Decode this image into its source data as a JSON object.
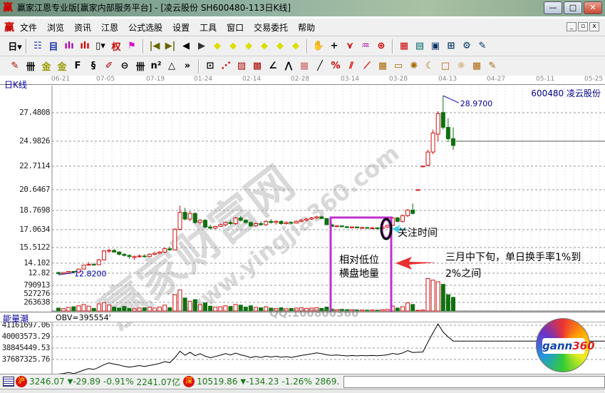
{
  "window": {
    "title": "赢家江恩专业版[赢家内部服务平台] - [凌云股份  SH600480-113日K线]",
    "logo": "赢",
    "buttons": [
      "—",
      "□",
      "✕"
    ]
  },
  "menu": {
    "logo": "赢",
    "items": [
      "文件",
      "浏览",
      "资讯",
      "江恩",
      "公式选股",
      "设置",
      "工具",
      "窗口",
      "交易委托",
      "帮助"
    ],
    "mdi_buttons": [
      "_",
      "▫",
      "x"
    ]
  },
  "toolbar1": [
    {
      "icon": "period-day-icon",
      "glyph": "日▾",
      "color": "#000"
    },
    {
      "sep": true
    },
    {
      "icon": "stock-list-icon",
      "glyph": "☷",
      "color": "#2233aa"
    },
    {
      "icon": "self-select-icon",
      "glyph": "目",
      "color": "#2233aa"
    },
    {
      "icon": "indicator-3-icon",
      "glyph": "ılı",
      "color": "#a0a"
    },
    {
      "icon": "indicator-9-icon",
      "glyph": "ılı",
      "color": "#c00"
    },
    {
      "icon": "candle-type-icon",
      "glyph": "▯▾",
      "color": "#000"
    },
    {
      "icon": "restore-rights-icon",
      "glyph": "权",
      "color": "#c00"
    },
    {
      "icon": "flag-icon",
      "glyph": "⚑",
      "color": "#d0c"
    },
    {
      "sep": true
    },
    {
      "icon": "first-icon",
      "glyph": "|◀",
      "color": "#660"
    },
    {
      "icon": "last-icon",
      "glyph": "▶|",
      "color": "#660"
    },
    {
      "icon": "prev-icon",
      "glyph": "◀",
      "color": "#000"
    },
    {
      "icon": "next-icon",
      "glyph": "▶",
      "color": "#333"
    },
    {
      "icon": "zoom-left-icon",
      "glyph": "◆",
      "color": "#dd0"
    },
    {
      "icon": "zoom-right-icon",
      "glyph": "◆",
      "color": "#dd0"
    },
    {
      "icon": "zoom-h-icon",
      "glyph": "◆",
      "color": "#dd0"
    },
    {
      "icon": "compress-h-icon",
      "glyph": "◆",
      "color": "#dd0"
    },
    {
      "icon": "zoom-all-icon",
      "glyph": "◆",
      "color": "#dd0"
    },
    {
      "icon": "zoom-v-icon",
      "glyph": "◆",
      "color": "#dd0"
    },
    {
      "sep": true
    },
    {
      "icon": "hand-icon",
      "glyph": "✋",
      "color": "#333"
    },
    {
      "icon": "crosshair-icon",
      "glyph": "+",
      "color": "#000"
    },
    {
      "icon": "trend-icon",
      "glyph": "⋎",
      "color": "#c00"
    },
    {
      "icon": "pattern-icon",
      "glyph": "♒",
      "color": "#a0a"
    },
    {
      "icon": "overlay-icon",
      "glyph": "⊕",
      "color": "#c00"
    },
    {
      "sep": true
    },
    {
      "icon": "calendar-icon",
      "glyph": "▦",
      "color": "#c00"
    },
    {
      "icon": "calculator-icon",
      "glyph": "▤",
      "color": "#066"
    },
    {
      "icon": "display-icon",
      "glyph": "▣",
      "color": "#036"
    },
    {
      "icon": "network-icon",
      "glyph": "⊞",
      "color": "#036"
    },
    {
      "icon": "settings-icon",
      "glyph": "⚙",
      "color": "#036"
    },
    {
      "icon": "trade-icon",
      "glyph": "✎",
      "color": "#036"
    }
  ],
  "toolbar2": [
    {
      "icon": "pen-icon",
      "glyph": "✎",
      "color": "#a00"
    },
    {
      "icon": "cycle-lines-icon",
      "glyph": "卌",
      "color": "#000"
    },
    {
      "icon": "gold-ratio-icon",
      "glyph": "金",
      "color": "#990"
    },
    {
      "icon": "gold-ratio2-icon",
      "glyph": "金",
      "color": "#990"
    },
    {
      "icon": "fibonacci-icon",
      "glyph": "F",
      "color": "#000"
    },
    {
      "icon": "spiral-icon",
      "glyph": "§",
      "color": "#000"
    },
    {
      "icon": "gann-pen-icon",
      "glyph": "✐",
      "color": "#a00"
    },
    {
      "icon": "circle-icon",
      "glyph": "⊖",
      "color": "#000"
    },
    {
      "icon": "time-lines-icon",
      "glyph": "卌",
      "color": "#000"
    },
    {
      "icon": "square-n-icon",
      "glyph": "n²",
      "color": "#000"
    },
    {
      "icon": "triangle-icon",
      "glyph": "△",
      "color": "#000"
    },
    {
      "icon": "more-icon",
      "glyph": "»",
      "color": "#000"
    },
    {
      "sep": true
    },
    {
      "icon": "box-icon",
      "glyph": "⊡",
      "color": "#000"
    },
    {
      "icon": "fan-icon",
      "glyph": "⋰",
      "color": "#c00"
    },
    {
      "icon": "gann-box-icon",
      "glyph": "▨",
      "color": "#a00"
    },
    {
      "icon": "gann-grid-icon",
      "glyph": "▩",
      "color": "#a00"
    },
    {
      "icon": "angle-icon",
      "glyph": "∠",
      "color": "#000"
    },
    {
      "icon": "wave-icon",
      "glyph": "⋀",
      "color": "#000"
    },
    {
      "icon": "grid-icon",
      "glyph": "▦",
      "color": "#c66"
    },
    {
      "icon": "line-icon",
      "glyph": "╱",
      "color": "#000"
    },
    {
      "icon": "percent-icon",
      "glyph": "%",
      "color": "#c00"
    },
    {
      "icon": "channel-icon",
      "glyph": "⫽",
      "color": "#c00"
    },
    {
      "icon": "fan2-icon",
      "glyph": "⟋",
      "color": "#c00"
    },
    {
      "icon": "gann-square-icon",
      "glyph": "▦",
      "color": "#a60"
    },
    {
      "icon": "level-icon",
      "glyph": "▭",
      "color": "#a60"
    },
    {
      "icon": "astro-icon",
      "glyph": "✺",
      "color": "#a60"
    },
    {
      "icon": "moon-icon",
      "glyph": "☾",
      "color": "#a60"
    },
    {
      "icon": "square-icon",
      "glyph": "□",
      "color": "#a60"
    },
    {
      "icon": "sun-icon",
      "glyph": "☼",
      "color": "#a60"
    },
    {
      "icon": "table-icon",
      "glyph": "▦",
      "color": "#a60"
    },
    {
      "icon": "edit-icon",
      "glyph": "✎",
      "color": "#a60"
    }
  ],
  "date_axis": [
    "06-21",
    "07-05",
    "07-19",
    "01-24",
    "02-14",
    "02-28",
    "03-14",
    "03-28",
    "04-13",
    "04-27",
    "05-11",
    "05-25"
  ],
  "chart": {
    "name": "日K线",
    "stock": "600480  凌云股份",
    "high_label": "28.9700",
    "low_label": "12.8200"
  },
  "obv": {
    "name": "能量潮",
    "label": "OBV=395554'"
  },
  "annotations": {
    "focus": "关注时间",
    "box_line1": "相对低位",
    "box_line2": "横盘地量",
    "note_line1": "三月中下旬，单日换手率1%到",
    "note_line2": "2%之间"
  },
  "watermark": {
    "cn": "赢家财富网",
    "url": "www.yingjia360.com",
    "qq": "QQ:100800360",
    "logo": "gann360"
  },
  "status": {
    "sh_icon": "沪",
    "sh_index": "3246.07",
    "sh_change": "-29.89",
    "sh_pct": "-0.91%",
    "sh_amount": "2241.07亿",
    "sz_icon": "深",
    "sz_index": "10519.86",
    "sz_change": "-134.23",
    "sz_pct": "-1.26%",
    "sz_amount": "2869."
  },
  "colors": {
    "up": "#d01010",
    "down": "#107010",
    "annotation_box": "#c030d0",
    "arrow_red": "#e83030",
    "arrow_cyan": "#40d0e0"
  },
  "chart_data": {
    "type": "candlestick",
    "price_ticks": [
      27.4808,
      24.9826,
      22.7114,
      20.6467,
      18.7698,
      17.0634,
      15.5122,
      14.102,
      12.82
    ],
    "volume_ticks": [
      790913,
      527276,
      263638
    ],
    "obv_ticks": [
      41161697.06,
      40003573.29,
      38845449.53,
      37687325.76
    ],
    "candles_ohlcv": [
      [
        12.9,
        13.0,
        12.7,
        12.75,
        90000
      ],
      [
        12.75,
        12.95,
        12.7,
        12.9,
        70000
      ],
      [
        12.9,
        13.1,
        12.85,
        13.05,
        110000
      ],
      [
        13.05,
        13.1,
        12.9,
        12.95,
        130000
      ],
      [
        12.95,
        13.4,
        12.9,
        13.35,
        160000
      ],
      [
        13.35,
        13.9,
        13.3,
        13.85,
        200000
      ],
      [
        13.85,
        14.2,
        13.8,
        13.95,
        150000
      ],
      [
        13.95,
        14.1,
        13.85,
        13.9,
        80000
      ],
      [
        13.9,
        14.5,
        13.85,
        14.4,
        220000
      ],
      [
        14.4,
        15.3,
        14.35,
        15.2,
        260000
      ],
      [
        15.2,
        15.4,
        15.0,
        15.25,
        180000
      ],
      [
        15.25,
        15.4,
        15.1,
        15.1,
        120000
      ],
      [
        15.1,
        15.2,
        14.8,
        14.9,
        90000
      ],
      [
        14.9,
        15.0,
        14.7,
        14.8,
        140000
      ],
      [
        14.8,
        14.9,
        14.5,
        14.7,
        80000
      ],
      [
        14.6,
        14.8,
        14.4,
        14.7,
        70000
      ],
      [
        14.7,
        14.9,
        14.6,
        14.75,
        90000
      ],
      [
        14.75,
        14.9,
        14.6,
        14.7,
        100000
      ],
      [
        14.7,
        15.0,
        14.65,
        14.9,
        110000
      ],
      [
        14.9,
        15.1,
        14.8,
        15.0,
        90000
      ],
      [
        15.0,
        15.2,
        14.9,
        15.1,
        120000
      ],
      [
        15.1,
        15.5,
        15.0,
        15.4,
        180000
      ],
      [
        15.4,
        15.6,
        15.2,
        15.3,
        100000
      ],
      [
        15.3,
        17.2,
        15.3,
        17.1,
        500000
      ],
      [
        17.1,
        19.2,
        17.0,
        18.6,
        650000
      ],
      [
        18.6,
        19.0,
        17.9,
        18.0,
        400000
      ],
      [
        18.0,
        18.7,
        17.8,
        18.5,
        300000
      ],
      [
        18.5,
        18.6,
        17.6,
        17.7,
        350000
      ],
      [
        17.7,
        18.0,
        17.5,
        17.9,
        200000
      ],
      [
        17.9,
        18.0,
        17.2,
        17.3,
        250000
      ],
      [
        17.3,
        17.5,
        17.1,
        17.2,
        150000
      ],
      [
        17.2,
        17.4,
        17.1,
        17.35,
        120000
      ],
      [
        17.35,
        17.6,
        17.3,
        17.5,
        130000
      ],
      [
        17.5,
        17.8,
        17.4,
        17.7,
        160000
      ],
      [
        17.7,
        17.9,
        17.5,
        17.6,
        140000
      ],
      [
        17.6,
        18.2,
        17.5,
        18.1,
        200000
      ],
      [
        18.1,
        18.3,
        17.8,
        17.9,
        180000
      ],
      [
        17.9,
        18.0,
        17.6,
        17.7,
        120000
      ],
      [
        17.7,
        17.8,
        17.3,
        17.4,
        160000
      ],
      [
        17.4,
        17.7,
        17.3,
        17.6,
        110000
      ],
      [
        17.6,
        17.8,
        17.4,
        17.5,
        100000
      ],
      [
        17.5,
        17.9,
        17.4,
        17.8,
        130000
      ],
      [
        17.8,
        18.0,
        17.6,
        17.7,
        90000
      ],
      [
        17.7,
        17.9,
        17.5,
        17.8,
        80000
      ],
      [
        17.8,
        17.9,
        17.5,
        17.6,
        100000
      ],
      [
        17.6,
        17.8,
        17.5,
        17.7,
        70000
      ],
      [
        17.7,
        17.8,
        17.5,
        17.65,
        80000
      ],
      [
        17.65,
        17.9,
        17.6,
        17.8,
        90000
      ],
      [
        17.8,
        18.0,
        17.7,
        17.9,
        100000
      ],
      [
        17.9,
        18.1,
        17.8,
        18.0,
        80000
      ],
      [
        18.0,
        18.2,
        17.9,
        18.1,
        90000
      ],
      [
        18.1,
        18.3,
        18.0,
        18.2,
        100000
      ],
      [
        18.2,
        18.3,
        18.0,
        18.05,
        80000
      ],
      [
        18.05,
        18.1,
        17.5,
        17.5,
        120000
      ],
      [
        17.5,
        17.6,
        17.3,
        17.35,
        60000
      ],
      [
        17.35,
        17.45,
        17.3,
        17.4,
        40000
      ],
      [
        17.4,
        17.45,
        17.3,
        17.32,
        50000
      ],
      [
        17.32,
        17.4,
        17.2,
        17.25,
        40000
      ],
      [
        17.25,
        17.35,
        17.2,
        17.3,
        35000
      ],
      [
        17.3,
        17.35,
        17.2,
        17.22,
        30000
      ],
      [
        17.22,
        17.3,
        17.15,
        17.25,
        30000
      ],
      [
        17.25,
        17.3,
        17.15,
        17.2,
        25000
      ],
      [
        17.2,
        17.3,
        17.1,
        17.22,
        30000
      ],
      [
        17.22,
        17.3,
        17.1,
        17.15,
        25000
      ],
      [
        17.15,
        17.4,
        17.1,
        17.3,
        40000
      ],
      [
        17.3,
        17.5,
        17.2,
        17.45,
        50000
      ],
      [
        17.45,
        18.2,
        17.4,
        18.1,
        150000
      ],
      [
        18.1,
        18.2,
        17.7,
        17.8,
        90000
      ],
      [
        17.8,
        18.4,
        17.7,
        18.3,
        130000
      ],
      [
        18.3,
        18.9,
        18.2,
        18.8,
        250000
      ],
      [
        18.8,
        19.4,
        18.4,
        18.5,
        200000
      ],
      [
        20.6,
        20.65,
        20.6,
        20.65,
        20000
      ],
      [
        22.7,
        22.75,
        22.7,
        22.72,
        30000
      ],
      [
        22.8,
        24.2,
        22.7,
        24.0,
        1000000
      ],
      [
        24.0,
        26.0,
        23.8,
        25.7,
        950000
      ],
      [
        25.6,
        27.6,
        25.0,
        27.4,
        900000
      ],
      [
        27.5,
        28.97,
        26.0,
        26.2,
        820000
      ],
      [
        26.2,
        27.0,
        24.9,
        25.2,
        500000
      ],
      [
        25.2,
        26.2,
        24.2,
        24.6,
        420000
      ]
    ]
  }
}
